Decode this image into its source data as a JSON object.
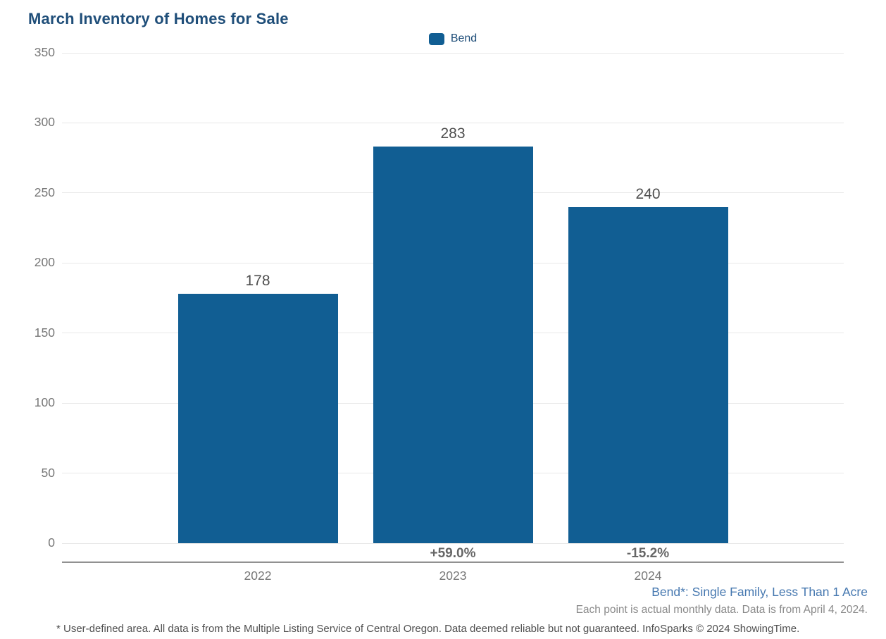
{
  "title": "March Inventory of Homes for Sale",
  "legend": {
    "label": "Bend"
  },
  "chart_data": {
    "type": "bar",
    "title": "March Inventory of Homes for Sale",
    "series_name": "Bend",
    "categories": [
      "2022",
      "2023",
      "2024"
    ],
    "values": [
      178,
      283,
      240
    ],
    "value_labels": [
      "178",
      "283",
      "240"
    ],
    "pct_change_labels": [
      "",
      "+59.0%",
      "-15.2%"
    ],
    "xlabel": "",
    "ylabel": "",
    "ylim": [
      0,
      350
    ],
    "yticks": [
      0,
      50,
      100,
      150,
      200,
      250,
      300,
      350
    ],
    "grid": "horizontal",
    "legend_position": "top-center"
  },
  "annotations": {
    "series_note": "Bend*: Single Family, Less Than 1 Acre",
    "data_note": "Each point is actual monthly data. Data is from April 4, 2024.",
    "footnote": "* User-defined area. All data is from the Multiple Listing Service of Central Oregon. Data deemed reliable but not guaranteed. InfoSparks © 2024 ShowingTime."
  },
  "colors": {
    "title": "#1F4E79",
    "bar": "#115E93",
    "gridline": "#E8E8E8",
    "axis_line": "#919191",
    "axis_label": "#777777",
    "value_label": "#4F4F4F",
    "pct_label": "#666666",
    "series_note": "#4678B0",
    "data_note": "#8A8A8A",
    "footnote": "#4F4F4F"
  }
}
